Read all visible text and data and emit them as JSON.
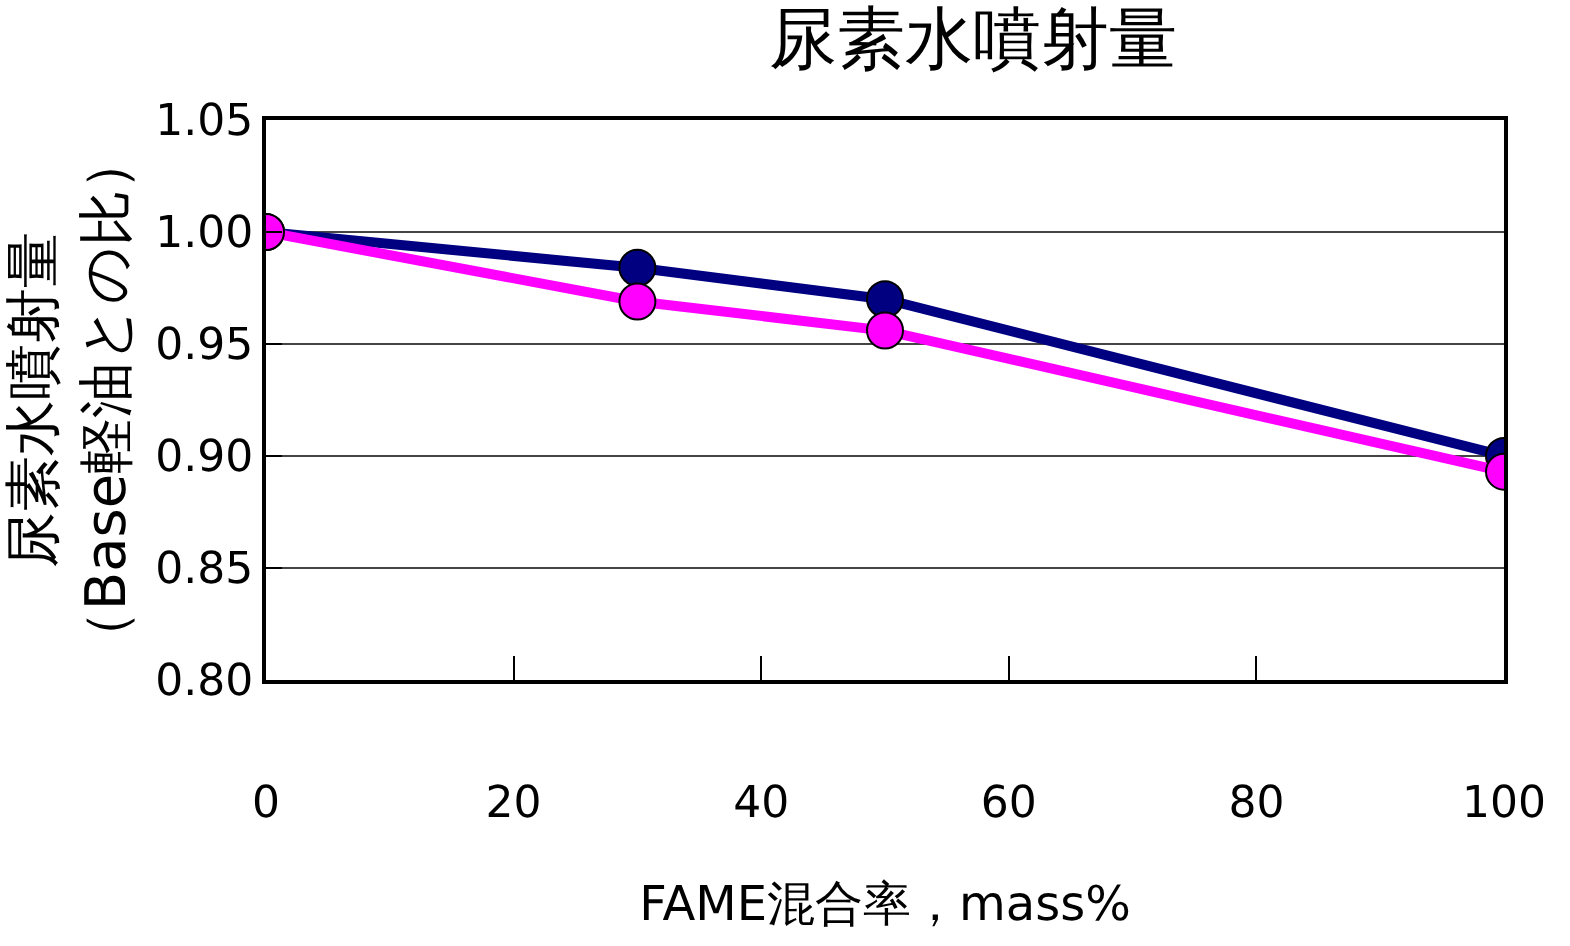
{
  "chart_data": {
    "type": "line",
    "title": "尿素水噴射量",
    "xlabel": "FAME混合率，mass%",
    "ylabel": "尿素水噴射量（Base軽油との比）",
    "x": [
      0,
      30,
      50,
      100
    ],
    "series": [
      {
        "color": "#000080",
        "values": [
          1.0,
          0.984,
          0.97,
          0.9
        ]
      },
      {
        "color": "#ff00ff",
        "values": [
          1.0,
          0.969,
          0.956,
          0.893
        ]
      }
    ],
    "xlim": [
      0,
      100
    ],
    "xticks": [
      0,
      20,
      40,
      60,
      80,
      100
    ],
    "ylim": [
      0.8,
      1.05
    ],
    "yticks": [
      {
        "value": 0.8,
        "label": "0.80"
      },
      {
        "value": 0.85,
        "label": "0.85"
      },
      {
        "value": 0.9,
        "label": "0.90"
      },
      {
        "value": 0.95,
        "label": "0.95"
      },
      {
        "value": 1.0,
        "label": "1.00"
      },
      {
        "value": 1.05,
        "label": "1.05"
      }
    ],
    "grid": "y",
    "legend": false,
    "marker": "circle",
    "line_style": "solid"
  }
}
